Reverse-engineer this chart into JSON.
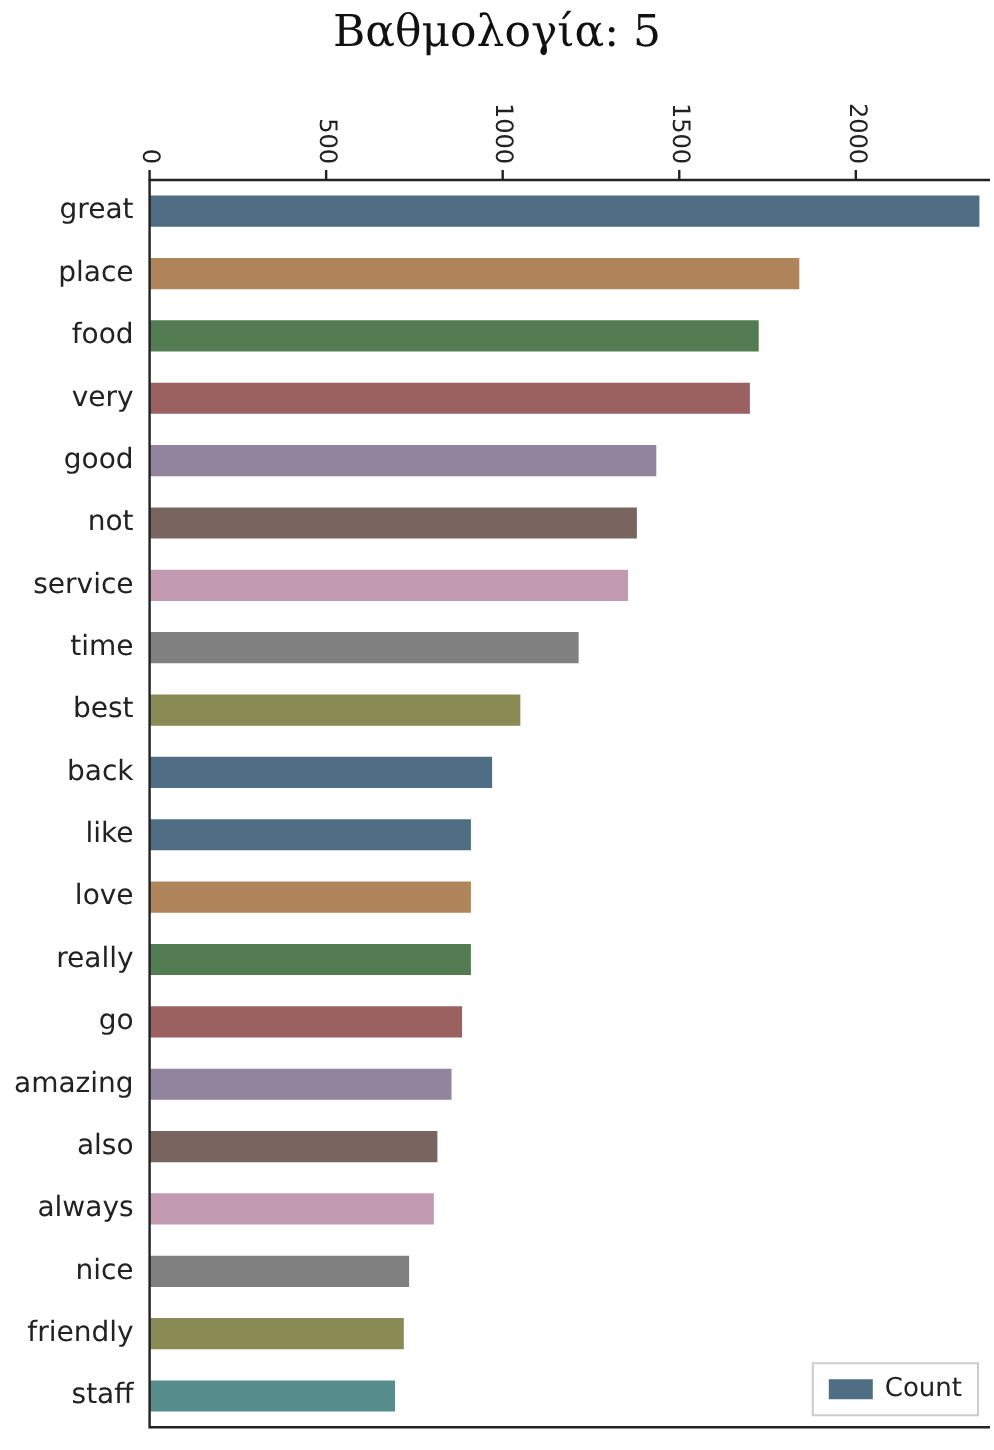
{
  "chart_data": {
    "type": "bar",
    "orientation": "horizontal",
    "title": "Βαθμολογία: 5",
    "categories": [
      "great",
      "place",
      "food",
      "very",
      "good",
      "not",
      "service",
      "time",
      "best",
      "back",
      "like",
      "love",
      "really",
      "go",
      "amazing",
      "also",
      "always",
      "nice",
      "friendly",
      "staff"
    ],
    "series": [
      {
        "name": "Count",
        "colors": [
          "#4f6e84",
          "#b0855c",
          "#547c52",
          "#9a6160",
          "#93849e",
          "#786560",
          "#c29ab2",
          "#808080",
          "#8a8a54",
          "#4f6e84",
          "#4f6e84",
          "#b0855c",
          "#547c52",
          "#9a6160",
          "#93849e",
          "#786560",
          "#c29ab2",
          "#808080",
          "#8a8a54",
          "#568c8c"
        ],
        "values": [
          2350,
          1840,
          1725,
          1700,
          1435,
          1380,
          1355,
          1215,
          1050,
          970,
          910,
          910,
          910,
          885,
          855,
          815,
          805,
          735,
          720,
          695
        ]
      }
    ],
    "xlim": [
      0,
      2380
    ],
    "xticks": [
      0,
      500,
      1000,
      1500,
      2000
    ],
    "grid": false,
    "legend": "bottom right"
  }
}
